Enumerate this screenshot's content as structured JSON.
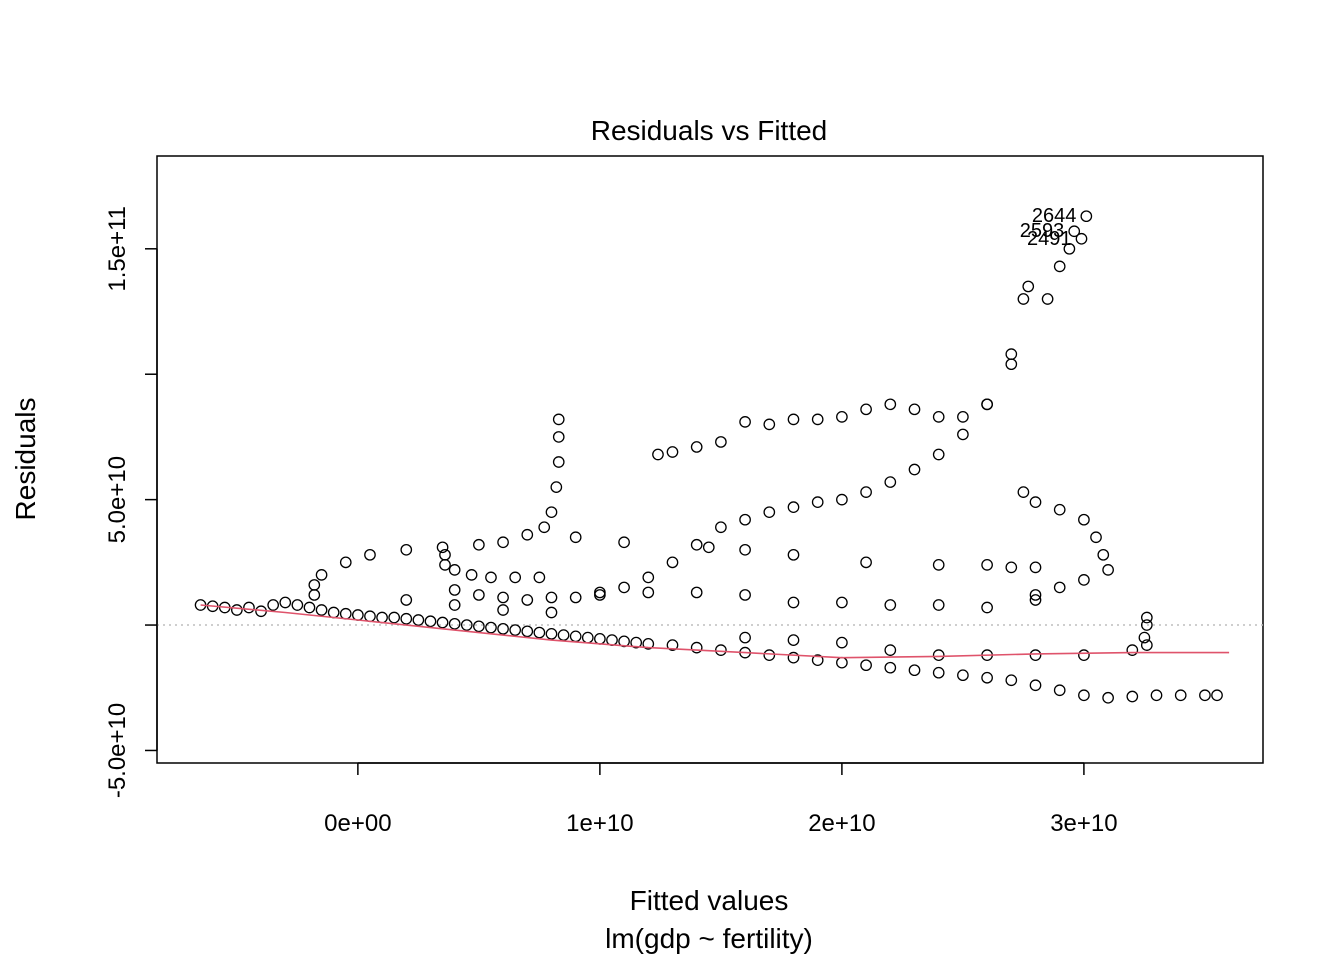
{
  "chart_data": {
    "type": "scatter",
    "title": "Residuals vs Fitted",
    "xlabel": "Fitted values",
    "subtitle": "lm(gdp ~ fertility)",
    "ylabel": "Residuals",
    "xlim": [
      -8300000000.0,
      37400000000.0
    ],
    "ylim": [
      -55000000000.0,
      187000000000.0
    ],
    "x_ticks": [
      0,
      10000000000.0,
      20000000000.0,
      30000000000.0
    ],
    "x_tick_labels": [
      "0e+00",
      "1e+10",
      "2e+10",
      "3e+10"
    ],
    "y_ticks": [
      -50000000000.0,
      0,
      50000000000.0,
      100000000000.0,
      150000000000.0
    ],
    "y_tick_labels": [
      "-5.0e+10",
      "",
      "5.0e+10",
      "",
      "1.5e+11"
    ],
    "reference_line": {
      "y": 0,
      "style": "dotted",
      "color": "#bebebe"
    },
    "smoother": {
      "color": "#df536b",
      "x": [
        -6500000000.0,
        -3000000000.0,
        0,
        4000000000.0,
        8000000000.0,
        12000000000.0,
        16000000000.0,
        20000000000.0,
        24000000000.0,
        28000000000.0,
        32000000000.0,
        36000000000.0
      ],
      "y": [
        8000000000.0,
        5000000000.0,
        2000000000.0,
        -2000000000.0,
        -6000000000.0,
        -9000000000.0,
        -11000000000.0,
        -13000000000.0,
        -12500000000.0,
        -11500000000.0,
        -11000000000.0,
        -11000000000.0
      ]
    },
    "point_labels": [
      {
        "text": "2644",
        "x": 30100000000.0,
        "y": 163000000000.0
      },
      {
        "text": "2593",
        "x": 29600000000.0,
        "y": 157000000000.0
      },
      {
        "text": "2491",
        "x": 29900000000.0,
        "y": 154000000000.0
      }
    ],
    "series": [
      {
        "values": [
          [
            -6500000000.0,
            8000000000.0
          ],
          [
            -6000000000.0,
            7500000000.0
          ],
          [
            -5500000000.0,
            7000000000.0
          ],
          [
            -5000000000.0,
            6000000000.0
          ],
          [
            -4500000000.0,
            7000000000.0
          ],
          [
            -4000000000.0,
            5500000000.0
          ],
          [
            -3500000000.0,
            8000000000.0
          ],
          [
            -3000000000.0,
            9000000000.0
          ],
          [
            -2500000000.0,
            8000000000.0
          ],
          [
            -2000000000.0,
            7000000000.0
          ],
          [
            -1500000000.0,
            6000000000.0
          ],
          [
            -1000000000.0,
            5000000000.0
          ],
          [
            -500000000.0,
            4500000000.0
          ],
          [
            0,
            4000000000.0
          ],
          [
            500000000.0,
            3500000000.0
          ],
          [
            1000000000.0,
            3000000000.0
          ],
          [
            1500000000.0,
            3000000000.0
          ],
          [
            2000000000.0,
            2500000000.0
          ],
          [
            2500000000.0,
            2000000000.0
          ],
          [
            3000000000.0,
            1500000000.0
          ],
          [
            3500000000.0,
            1000000000.0
          ],
          [
            4000000000.0,
            500000000.0
          ],
          [
            4500000000.0,
            0
          ],
          [
            5000000000.0,
            -500000000.0
          ],
          [
            5500000000.0,
            -1000000000.0
          ],
          [
            6000000000.0,
            -1500000000.0
          ],
          [
            6500000000.0,
            -2000000000.0
          ],
          [
            7000000000.0,
            -2500000000.0
          ],
          [
            7500000000.0,
            -3000000000.0
          ],
          [
            8000000000.0,
            -3500000000.0
          ],
          [
            8500000000.0,
            -4000000000.0
          ],
          [
            9000000000.0,
            -4500000000.0
          ],
          [
            9500000000.0,
            -5000000000.0
          ],
          [
            10000000000.0,
            -5500000000.0
          ],
          [
            10500000000.0,
            -6000000000.0
          ],
          [
            11000000000.0,
            -6500000000.0
          ],
          [
            11500000000.0,
            -7000000000.0
          ],
          [
            12000000000.0,
            -7500000000.0
          ],
          [
            13000000000.0,
            -8000000000.0
          ],
          [
            14000000000.0,
            -9000000000.0
          ],
          [
            15000000000.0,
            -10000000000.0
          ],
          [
            16000000000.0,
            -11000000000.0
          ],
          [
            17000000000.0,
            -12000000000.0
          ],
          [
            18000000000.0,
            -13000000000.0
          ],
          [
            19000000000.0,
            -14000000000.0
          ],
          [
            20000000000.0,
            -15000000000.0
          ],
          [
            21000000000.0,
            -16000000000.0
          ],
          [
            22000000000.0,
            -17000000000.0
          ],
          [
            23000000000.0,
            -18000000000.0
          ],
          [
            24000000000.0,
            -19000000000.0
          ],
          [
            25000000000.0,
            -20000000000.0
          ],
          [
            26000000000.0,
            -21000000000.0
          ],
          [
            27000000000.0,
            -22000000000.0
          ],
          [
            28000000000.0,
            -24000000000.0
          ],
          [
            29000000000.0,
            -26000000000.0
          ],
          [
            30000000000.0,
            -28000000000.0
          ],
          [
            31000000000.0,
            -29000000000.0
          ],
          [
            32000000000.0,
            -28500000000.0
          ],
          [
            33000000000.0,
            -28000000000.0
          ],
          [
            34000000000.0,
            -28000000000.0
          ],
          [
            35000000000.0,
            -28000000000.0
          ],
          [
            35500000000.0,
            -28000000000.0
          ],
          [
            -1800000000.0,
            12000000000.0
          ],
          [
            -1800000000.0,
            16000000000.0
          ],
          [
            -1500000000.0,
            20000000000.0
          ],
          [
            -500000000.0,
            25000000000.0
          ],
          [
            500000000.0,
            28000000000.0
          ],
          [
            2000000000.0,
            30000000000.0
          ],
          [
            3500000000.0,
            31000000000.0
          ],
          [
            5000000000.0,
            32000000000.0
          ],
          [
            6000000000.0,
            33000000000.0
          ],
          [
            7000000000.0,
            36000000000.0
          ],
          [
            7700000000.0,
            39000000000.0
          ],
          [
            8000000000.0,
            45000000000.0
          ],
          [
            8200000000.0,
            55000000000.0
          ],
          [
            8300000000.0,
            65000000000.0
          ],
          [
            8300000000.0,
            75000000000.0
          ],
          [
            8300000000.0,
            82000000000.0
          ],
          [
            3600000000.0,
            28000000000.0
          ],
          [
            3600000000.0,
            24000000000.0
          ],
          [
            4000000000.0,
            22000000000.0
          ],
          [
            4700000000.0,
            20000000000.0
          ],
          [
            5500000000.0,
            19000000000.0
          ],
          [
            6500000000.0,
            19000000000.0
          ],
          [
            7500000000.0,
            19000000000.0
          ],
          [
            4000000000.0,
            14000000000.0
          ],
          [
            5000000000.0,
            12000000000.0
          ],
          [
            6000000000.0,
            11000000000.0
          ],
          [
            7000000000.0,
            10000000000.0
          ],
          [
            8000000000.0,
            11000000000.0
          ],
          [
            9000000000.0,
            11000000000.0
          ],
          [
            10000000000.0,
            12000000000.0
          ],
          [
            11000000000.0,
            15000000000.0
          ],
          [
            12000000000.0,
            19000000000.0
          ],
          [
            13000000000.0,
            25000000000.0
          ],
          [
            14000000000.0,
            32000000000.0
          ],
          [
            15000000000.0,
            39000000000.0
          ],
          [
            16000000000.0,
            42000000000.0
          ],
          [
            17000000000.0,
            45000000000.0
          ],
          [
            18000000000.0,
            47000000000.0
          ],
          [
            19000000000.0,
            49000000000.0
          ],
          [
            20000000000.0,
            50000000000.0
          ],
          [
            21000000000.0,
            53000000000.0
          ],
          [
            22000000000.0,
            57000000000.0
          ],
          [
            23000000000.0,
            62000000000.0
          ],
          [
            24000000000.0,
            68000000000.0
          ],
          [
            25000000000.0,
            76000000000.0
          ],
          [
            26000000000.0,
            88000000000.0
          ],
          [
            27000000000.0,
            104000000000.0
          ],
          [
            28000000000.0,
            12000000000.0
          ],
          [
            28500000000.0,
            130000000000.0
          ],
          [
            29000000000.0,
            143000000000.0
          ],
          [
            29400000000.0,
            150000000000.0
          ],
          [
            29600000000.0,
            157000000000.0
          ],
          [
            30100000000.0,
            163000000000.0
          ],
          [
            29900000000.0,
            154000000000.0
          ],
          [
            12400000000.0,
            68000000000.0
          ],
          [
            13000000000.0,
            69000000000.0
          ],
          [
            14000000000.0,
            71000000000.0
          ],
          [
            15000000000.0,
            73000000000.0
          ],
          [
            16000000000.0,
            81000000000.0
          ],
          [
            17000000000.0,
            80000000000.0
          ],
          [
            18000000000.0,
            82000000000.0
          ],
          [
            19000000000.0,
            82000000000.0
          ],
          [
            20000000000.0,
            83000000000.0
          ],
          [
            21000000000.0,
            86000000000.0
          ],
          [
            22000000000.0,
            88000000000.0
          ],
          [
            23000000000.0,
            86000000000.0
          ],
          [
            24000000000.0,
            83000000000.0
          ],
          [
            25000000000.0,
            83000000000.0
          ],
          [
            26000000000.0,
            88000000000.0
          ],
          [
            27000000000.0,
            108000000000.0
          ],
          [
            27500000000.0,
            130000000000.0
          ],
          [
            27700000000.0,
            135000000000.0
          ],
          [
            27500000000.0,
            53000000000.0
          ],
          [
            28000000000.0,
            49000000000.0
          ],
          [
            29000000000.0,
            46000000000.0
          ],
          [
            30000000000.0,
            42000000000.0
          ],
          [
            30500000000.0,
            35000000000.0
          ],
          [
            30800000000.0,
            28000000000.0
          ],
          [
            31000000000.0,
            22000000000.0
          ],
          [
            30000000000.0,
            18000000000.0
          ],
          [
            29000000000.0,
            15000000000.0
          ],
          [
            28000000000.0,
            10000000000.0
          ],
          [
            26000000000.0,
            7000000000.0
          ],
          [
            24000000000.0,
            8000000000.0
          ],
          [
            22000000000.0,
            8000000000.0
          ],
          [
            20000000000.0,
            9000000000.0
          ],
          [
            18000000000.0,
            9000000000.0
          ],
          [
            16000000000.0,
            12000000000.0
          ],
          [
            14000000000.0,
            13000000000.0
          ],
          [
            12000000000.0,
            13000000000.0
          ],
          [
            10000000000.0,
            13000000000.0
          ],
          [
            2000000000.0,
            10000000000.0
          ],
          [
            4000000000.0,
            8000000000.0
          ],
          [
            6000000000.0,
            6000000000.0
          ],
          [
            8000000000.0,
            5000000000.0
          ],
          [
            16000000000.0,
            -5000000000.0
          ],
          [
            18000000000.0,
            -6000000000.0
          ],
          [
            20000000000.0,
            -7000000000.0
          ],
          [
            22000000000.0,
            -10000000000.0
          ],
          [
            24000000000.0,
            -12000000000.0
          ],
          [
            26000000000.0,
            -12000000000.0
          ],
          [
            28000000000.0,
            -12000000000.0
          ],
          [
            30000000000.0,
            -12000000000.0
          ],
          [
            32000000000.0,
            -10000000000.0
          ],
          [
            32500000000.0,
            -5000000000.0
          ],
          [
            32600000000.0,
            0
          ],
          [
            32600000000.0,
            3000000000.0
          ],
          [
            32600000000.0,
            -8000000000.0
          ],
          [
            9000000000.0,
            35000000000.0
          ],
          [
            11000000000.0,
            33000000000.0
          ],
          [
            14500000000.0,
            31000000000.0
          ],
          [
            16000000000.0,
            30000000000.0
          ],
          [
            18000000000.0,
            28000000000.0
          ],
          [
            21000000000.0,
            25000000000.0
          ],
          [
            24000000000.0,
            24000000000.0
          ],
          [
            26000000000.0,
            24000000000.0
          ],
          [
            27000000000.0,
            23000000000.0
          ],
          [
            28000000000.0,
            23000000000.0
          ]
        ]
      }
    ]
  }
}
